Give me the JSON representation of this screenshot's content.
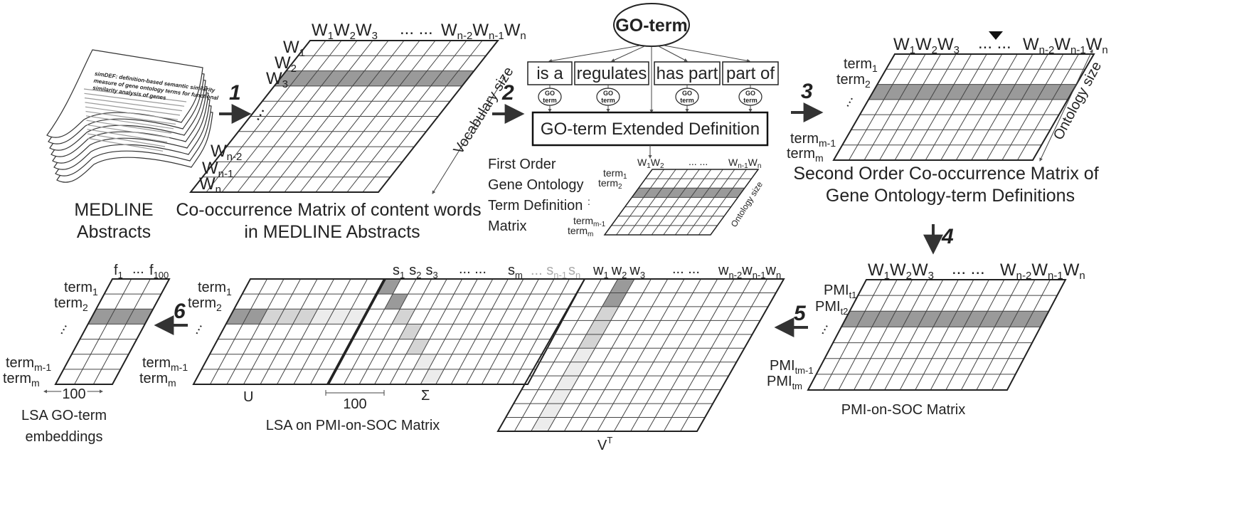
{
  "steps": [
    "1",
    "2",
    "3",
    "4",
    "5",
    "6"
  ],
  "medline": {
    "caption_line1": "MEDLINE",
    "caption_line2": "Abstracts",
    "paper_title_line1": "simDEF: definition-based semantic similarity",
    "paper_title_line2": "measure of gene ontology terms for functional",
    "paper_title_line3": "similarity analysis of genes"
  },
  "cooc": {
    "col_first": "W",
    "col_dots": "...   ...",
    "col_last": "W",
    "row_dots": "...",
    "side_label": "Vocabulary size",
    "caption_line1": "Co-occurrence Matrix of content words",
    "caption_line2": "in MEDLINE Abstracts"
  },
  "goterm": {
    "root": "GO-term",
    "relations": [
      "is a",
      "regulates",
      "has part",
      "part of"
    ],
    "child_line1": "GO",
    "child_line2": "term",
    "extended_def": "GO-term Extended Definition"
  },
  "first_order": {
    "caption_lines": [
      "First Order",
      "Gene Ontology",
      "Term Definition",
      "Matrix"
    ],
    "side_label": "Ontology size"
  },
  "second_order": {
    "side_label": "Ontology size",
    "caption_line1": "Second Order Co-occurrence Matrix of",
    "caption_line2": "Gene Ontology-term Definitions"
  },
  "pmi": {
    "caption": "PMI-on-SOC Matrix"
  },
  "lsa": {
    "u_label": "U",
    "sigma_label": "Σ",
    "vt_label": "V",
    "vt_sup": "T",
    "width_100": "100",
    "caption": "LSA on PMI-on-SOC Matrix",
    "s_dots": "...   ..."
  },
  "embeddings": {
    "f_first": "f",
    "f_first_sub": "1",
    "f_dots": "...",
    "f_last": "f",
    "f_last_sub": "100",
    "width_100": "100",
    "caption_line1": "LSA GO-term",
    "caption_line2": "embeddings"
  },
  "colors": {
    "highlight": "#9a9a9a",
    "light_highlight": "#d4d4d4",
    "pale": "#ececec",
    "line": "#333333"
  }
}
